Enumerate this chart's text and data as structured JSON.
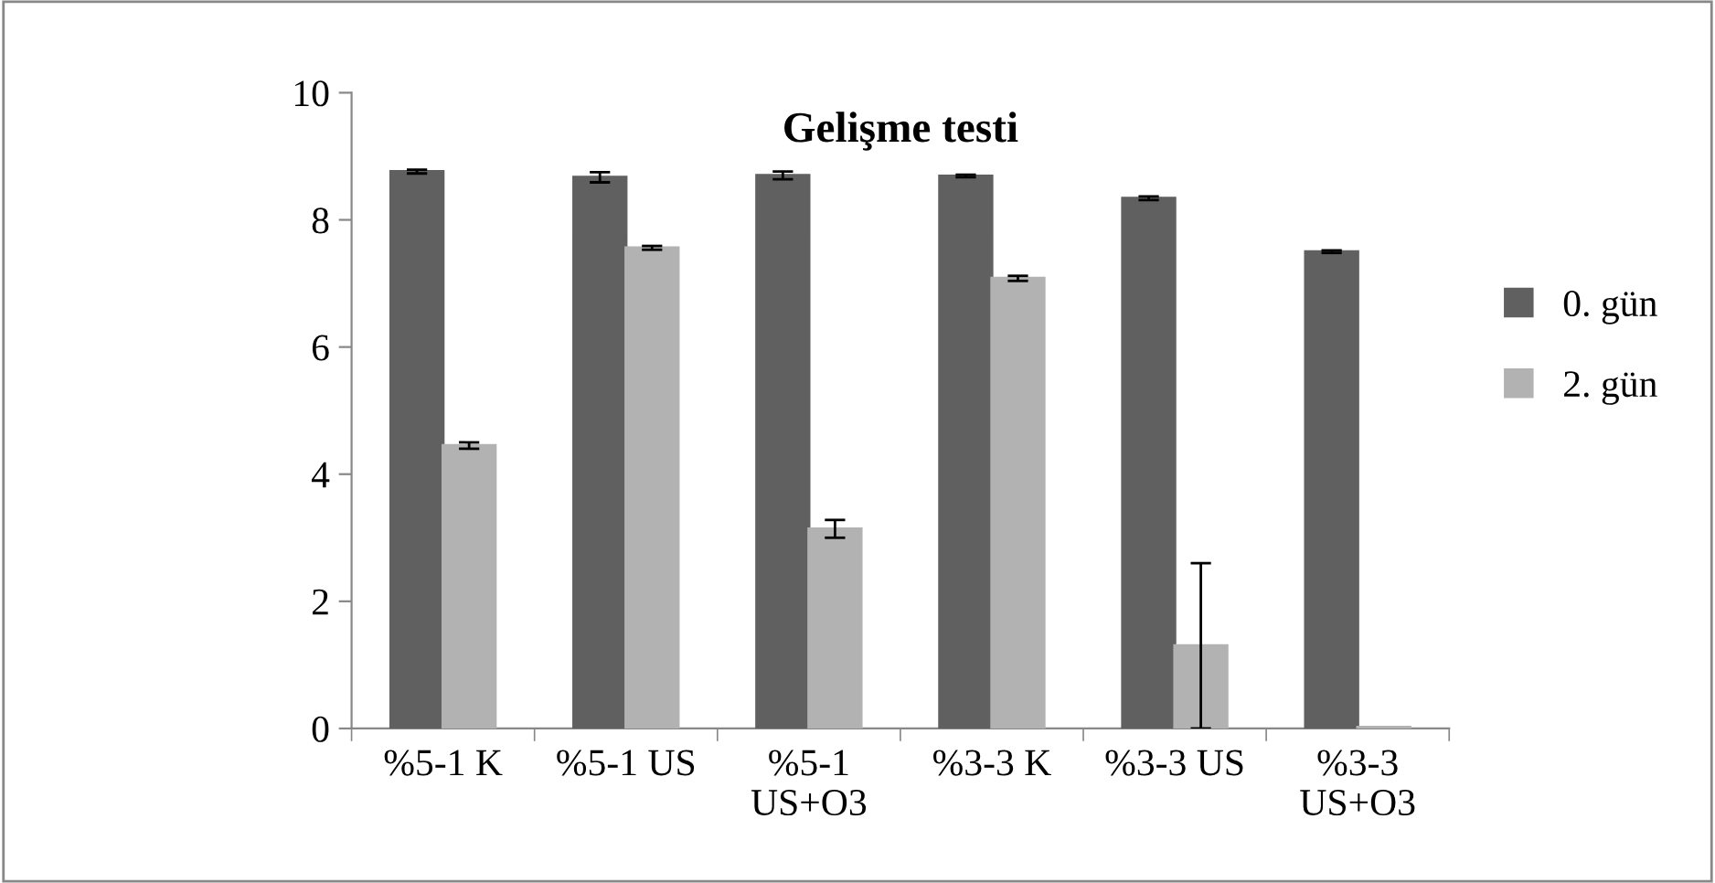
{
  "chart_data": {
    "type": "bar",
    "title": "Gelişme testi",
    "categories": [
      "%5-1 K",
      "%5-1 US",
      "%5-1\nUS+O3",
      "%3-3 K",
      "%3-3 US",
      "%3-3\nUS+O3"
    ],
    "series": [
      {
        "name": "0. gün",
        "color": "#606060",
        "values": [
          8.76,
          8.67,
          8.7,
          8.69,
          8.34,
          7.5
        ],
        "errors": [
          0.03,
          0.08,
          0.06,
          0.02,
          0.03,
          0.02
        ]
      },
      {
        "name": "2. gün",
        "color": "#b2b2b2",
        "values": [
          4.45,
          7.56,
          3.14,
          7.08,
          1.3,
          0.02
        ],
        "errors": [
          0.05,
          0.03,
          0.14,
          0.04,
          1.3,
          null
        ]
      }
    ],
    "ylim": [
      0,
      10
    ],
    "yticks": [
      0,
      2,
      4,
      6,
      8,
      10
    ],
    "grid": false,
    "legend": "right"
  }
}
